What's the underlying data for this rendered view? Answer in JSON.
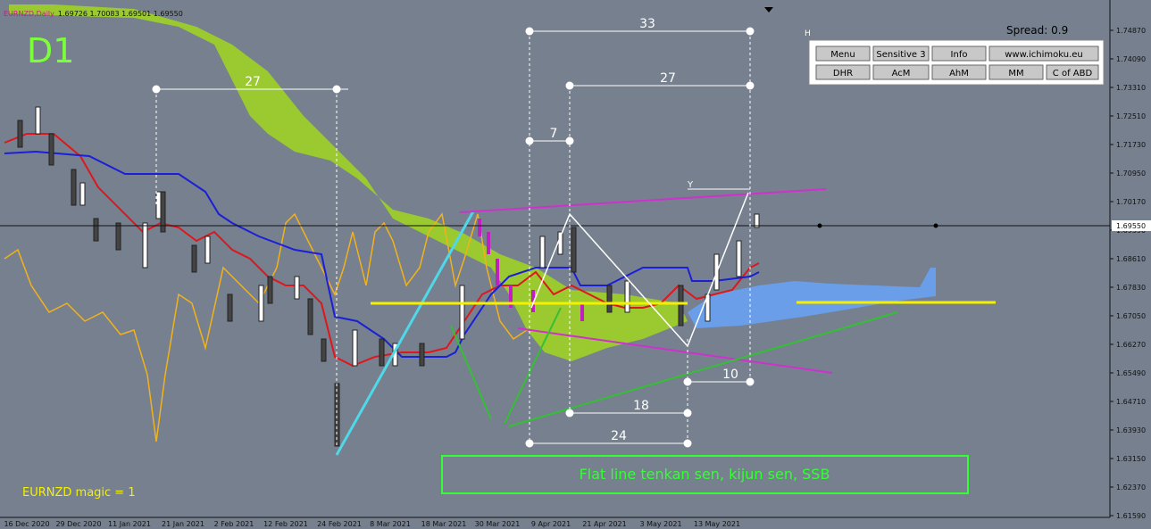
{
  "header": {
    "symbol": "EURNZD,Daily",
    "quote": "1.69726 1.70083 1.69501 1.69550"
  },
  "timeframe": "D1",
  "footer_label": "EURNZD  magic = 1",
  "spread": "Spread: 0.9",
  "panel_icon": "H",
  "buttons": {
    "row1": [
      "Menu",
      "Sensitive 3",
      "Info",
      "www.ichimoku.eu"
    ],
    "row2": [
      "DHR",
      "AcM",
      "AhM",
      "MM",
      "C of ABD"
    ]
  },
  "price_axis": [
    "1.74870",
    "1.74090",
    "1.73310",
    "1.72510",
    "1.71730",
    "1.70950",
    "1.70170",
    "1.69390",
    "1.68610",
    "1.67830",
    "1.67050",
    "1.66270",
    "1.65490",
    "1.64710",
    "1.63930",
    "1.63150",
    "1.62370",
    "1.61590"
  ],
  "current_price": "1.69550",
  "date_axis": [
    "16 Dec 2020",
    "29 Dec 2020",
    "11 Jan 2021",
    "21 Jan 2021",
    "2 Feb 2021",
    "12 Feb 2021",
    "24 Feb 2021",
    "8 Mar 2021",
    "18 Mar 2021",
    "30 Mar 2021",
    "9 Apr 2021",
    "21 Apr 2021",
    "3 May 2021",
    "13 May 2021"
  ],
  "annotations": {
    "a33": "33",
    "a27_top": "27",
    "a27_left": "27",
    "a7": "7",
    "a10": "10",
    "a18": "18",
    "a24": "24",
    "marker_y": "Y"
  },
  "callout": "Flat line tenkan sen, kijun sen, SSB"
}
